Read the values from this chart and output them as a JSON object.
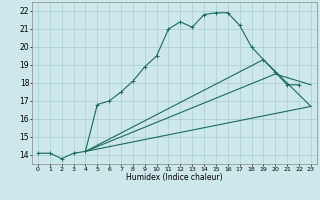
{
  "xlabel": "Humidex (Indice chaleur)",
  "bg_color": "#cce8ea",
  "grid_color": "#aacccc",
  "line_color": "#1a6b5a",
  "xlim": [
    -0.5,
    23.5
  ],
  "ylim": [
    13.5,
    22.5
  ],
  "xtick_labels": [
    "0",
    "1",
    "2",
    "3",
    "4",
    "5",
    "6",
    "7",
    "8",
    "9",
    "10",
    "11",
    "12",
    "13",
    "14",
    "15",
    "16",
    "17",
    "18",
    "19",
    "20",
    "21",
    "22",
    "23"
  ],
  "xtick_vals": [
    0,
    1,
    2,
    3,
    4,
    5,
    6,
    7,
    8,
    9,
    10,
    11,
    12,
    13,
    14,
    15,
    16,
    17,
    18,
    19,
    20,
    21,
    22,
    23
  ],
  "ytick_vals": [
    14,
    15,
    16,
    17,
    18,
    19,
    20,
    21,
    22
  ],
  "series": [
    {
      "x": [
        0,
        1,
        2,
        3,
        4,
        5,
        6,
        7,
        8,
        9,
        10,
        11,
        12,
        13,
        14,
        15,
        16,
        17,
        18,
        19,
        20,
        21,
        22
      ],
      "y": [
        14.1,
        14.1,
        13.8,
        14.1,
        14.2,
        16.8,
        17.0,
        17.5,
        18.1,
        18.9,
        19.5,
        21.0,
        21.4,
        21.1,
        21.8,
        21.9,
        21.9,
        21.2,
        20.0,
        19.3,
        18.6,
        17.9,
        17.9
      ],
      "marker": true
    },
    {
      "x": [
        4,
        23
      ],
      "y": [
        14.2,
        16.7
      ],
      "marker": false
    },
    {
      "x": [
        4,
        20,
        23
      ],
      "y": [
        14.2,
        18.5,
        17.9
      ],
      "marker": false
    },
    {
      "x": [
        4,
        19,
        23
      ],
      "y": [
        14.2,
        19.3,
        16.7
      ],
      "marker": false
    }
  ]
}
